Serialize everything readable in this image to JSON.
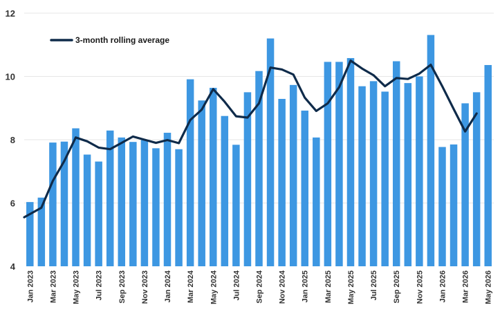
{
  "chart_data": {
    "type": "bar",
    "title": "",
    "xlabel": "",
    "ylabel": "",
    "ylim": [
      4,
      12
    ],
    "yticks": [
      4,
      6,
      8,
      10,
      12
    ],
    "grid": "horizontal",
    "legend_position": "top-left",
    "colors": {
      "bar": "#3d97e2",
      "line": "#0f2b4a",
      "grid": "#e6e6e6"
    },
    "categories": [
      "Jan 2023",
      "Feb 2023",
      "Mar 2023",
      "Apr 2023",
      "May 2023",
      "Jun 2023",
      "Jul 2023",
      "Aug 2023",
      "Sep 2023",
      "Oct 2023",
      "Nov 2023",
      "Dec 2023",
      "Jan 2024",
      "Feb 2024",
      "Mar 2024",
      "Apr 2024",
      "May 2024",
      "Jun 2024",
      "Jul 2024",
      "Aug 2024",
      "Sep 2024",
      "Oct 2024",
      "Nov 2024",
      "Dec 2024",
      "Jan 2025",
      "Feb 2025",
      "Mar 2025",
      "Apr 2025",
      "May 2025",
      "Jun 2025",
      "Jul 2025",
      "Aug 2025",
      "Sep 2025",
      "Oct 2025",
      "Nov 2025",
      "Dec 2025",
      "Jan 2026",
      "Feb 2026",
      "Mar 2026",
      "Apr 2026",
      "May 2026"
    ],
    "x_tick_labels": [
      "Jan 2023",
      "",
      "Mar 2023",
      "",
      "May 2023",
      "",
      "Jul 2023",
      "",
      "Sep 2023",
      "",
      "Nov 2023",
      "",
      "Jan 2024",
      "",
      "Mar 2024",
      "",
      "May 2024",
      "",
      "Jul 2024",
      "",
      "Sep 2024",
      "",
      "Nov 2024",
      "",
      "Jan 2025",
      "",
      "Mar 2025",
      "",
      "May 2025",
      "",
      "Jul 2025",
      "",
      "Sep 2025",
      "",
      "Nov 2025",
      "",
      "Jan 2026",
      "",
      "Mar 2026",
      "",
      "May 2026"
    ],
    "series": [
      {
        "kind": "bar",
        "values": [
          6.03,
          6.17,
          7.91,
          7.94,
          8.36,
          7.53,
          7.31,
          8.29,
          8.07,
          7.93,
          7.99,
          7.73,
          8.22,
          7.7,
          9.91,
          9.24,
          9.64,
          8.75,
          7.84,
          9.5,
          10.17,
          11.2,
          9.29,
          9.73,
          8.92,
          8.07,
          10.46,
          10.46,
          10.58,
          9.69,
          9.85,
          9.52,
          10.48,
          9.79,
          10.0,
          11.31,
          7.77,
          7.85,
          9.15,
          9.5,
          10.36
        ]
      },
      {
        "kind": "line",
        "name": "3-month rolling average",
        "values": [
          5.55,
          5.85,
          6.7,
          7.33,
          8.07,
          7.95,
          7.75,
          7.7,
          7.9,
          8.1,
          8.0,
          7.9,
          7.99,
          7.89,
          8.62,
          8.95,
          9.6,
          9.2,
          8.74,
          8.7,
          9.15,
          10.28,
          10.22,
          10.06,
          9.33,
          8.91,
          9.15,
          9.66,
          10.5,
          10.25,
          10.04,
          9.69,
          9.95,
          9.92,
          10.09,
          10.37,
          9.69,
          8.97,
          8.26,
          8.83,
          null
        ]
      }
    ]
  }
}
